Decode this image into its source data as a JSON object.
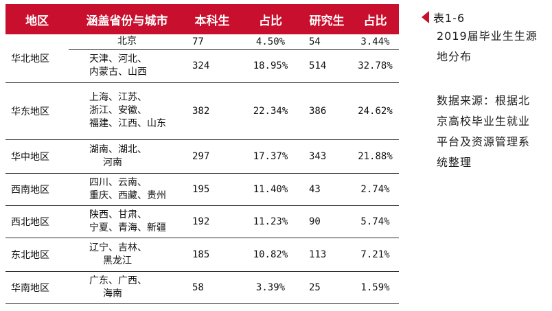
{
  "table": {
    "headers": [
      "地区",
      "涵盖省份与城市",
      "本科生",
      "占比",
      "研究生",
      "占比"
    ],
    "rows": [
      {
        "region": "华北地区",
        "provinces": [
          "北京"
        ],
        "undergrad": "77",
        "undergrad_pct": "4.50%",
        "grad": "54",
        "grad_pct": "3.44%"
      },
      {
        "region": "",
        "provinces": [
          "天津、河北、",
          "内蒙古、山西"
        ],
        "undergrad": "324",
        "undergrad_pct": "18.95%",
        "grad": "514",
        "grad_pct": "32.78%"
      },
      {
        "region": "华东地区",
        "provinces": [
          "上海、江苏、",
          "浙江、安徽、",
          "福建、江西、山东"
        ],
        "undergrad": "382",
        "undergrad_pct": "22.34%",
        "grad": "386",
        "grad_pct": "24.62%"
      },
      {
        "region": "华中地区",
        "provinces": [
          "湖南、湖北、",
          "河南"
        ],
        "undergrad": "297",
        "undergrad_pct": "17.37%",
        "grad": "343",
        "grad_pct": "21.88%"
      },
      {
        "region": "西南地区",
        "provinces": [
          "四川、云南、",
          "重庆、西藏、贵州"
        ],
        "undergrad": "195",
        "undergrad_pct": "11.40%",
        "grad": "43",
        "grad_pct": "2.74%"
      },
      {
        "region": "西北地区",
        "provinces": [
          "陕西、甘肃、",
          "宁夏、青海、新疆"
        ],
        "undergrad": "192",
        "undergrad_pct": "11.23%",
        "grad": "90",
        "grad_pct": "5.74%"
      },
      {
        "region": "东北地区",
        "provinces": [
          "辽宁、吉林、",
          "黑龙江"
        ],
        "undergrad": "185",
        "undergrad_pct": "10.82%",
        "grad": "113",
        "grad_pct": "7.21%"
      },
      {
        "region": "华南地区",
        "provinces": [
          "广东、广西、",
          "海南"
        ],
        "undergrad": "58",
        "undergrad_pct": "3.39%",
        "grad": "25",
        "grad_pct": "1.59%"
      }
    ]
  },
  "caption": {
    "label": "表1-6",
    "title_lines": [
      "2019届毕业生生源",
      "地分布"
    ]
  },
  "source": {
    "lines": [
      "数据来源：根据北",
      "京高校毕业生就业",
      "平台及资源管理系",
      "统整理"
    ]
  },
  "colors": {
    "header_bg": "#c8102e",
    "header_text": "#ffffff",
    "marker": "#c8102e"
  }
}
